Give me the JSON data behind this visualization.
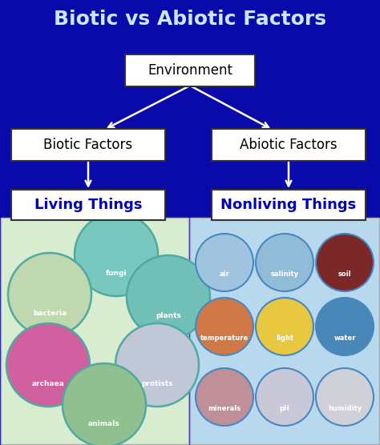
{
  "title": "Biotic vs Abiotic Factors",
  "title_color": "#c8e8ff",
  "title_fontsize": 18,
  "bg_color": "#0a0aaa",
  "env_box_text": "Environment",
  "biotic_box_text": "Biotic Factors",
  "abiotic_box_text": "Abiotic Factors",
  "living_text": "Living Things",
  "nonliving_text": "Nonliving Things",
  "living_label_color": "#0000bb",
  "nonliving_label_color": "#0000bb",
  "biotic_panel_color": "#d8ecd0",
  "abiotic_panel_color": "#b8d8ee",
  "biotic_items": [
    "fungi",
    "bacteria",
    "plants",
    "archaea",
    "protists",
    "animals"
  ],
  "biotic_item_colors": [
    "#78c8c0",
    "#c0d8b0",
    "#70c0b8",
    "#d060a0",
    "#c0c8d8",
    "#90c090"
  ],
  "biotic_item_border": "#50aaa0",
  "abiotic_items": [
    "air",
    "salinity",
    "soil",
    "temperature",
    "light",
    "water",
    "minerals",
    "pH",
    "humidity"
  ],
  "abiotic_item_colors": [
    "#a0c4e0",
    "#90bcd8",
    "#7a2828",
    "#d07848",
    "#e8c840",
    "#4888b8",
    "#c09098",
    "#c8c8d8",
    "#d0d0d8"
  ],
  "abiotic_item_border": "#4888c0"
}
